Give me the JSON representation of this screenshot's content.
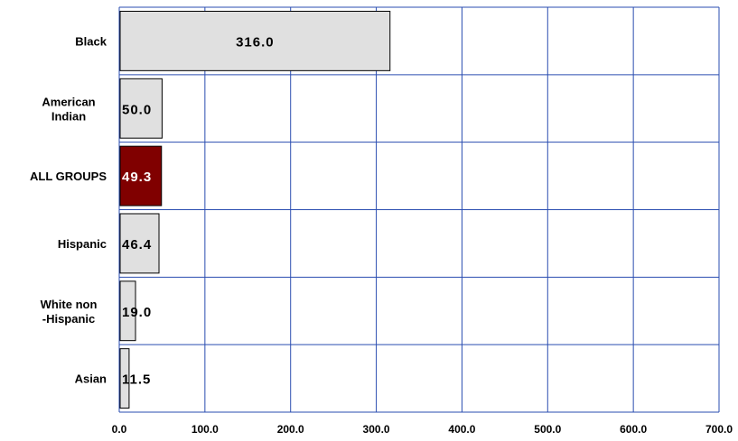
{
  "chart_data": {
    "type": "bar",
    "orientation": "horizontal",
    "categories": [
      "Black",
      "American Indian",
      "ALL GROUPS",
      "Hispanic",
      "White non -Hispanic",
      "Asian"
    ],
    "category_lines": [
      [
        "Black"
      ],
      [
        "American",
        "Indian"
      ],
      [
        "ALL GROUPS"
      ],
      [
        "Hispanic"
      ],
      [
        "White non",
        "-Hispanic"
      ],
      [
        "Asian"
      ]
    ],
    "values": [
      316.0,
      50.0,
      49.3,
      46.4,
      19.0,
      11.5
    ],
    "value_labels": [
      "316.0",
      "50.0",
      "49.3",
      "46.4",
      "19.0",
      "11.5"
    ],
    "xlim": [
      0,
      700
    ],
    "xticks": [
      "0.0",
      "100.0",
      "200.0",
      "300.0",
      "400.0",
      "500.0",
      "600.0",
      "700.0"
    ],
    "grid": true,
    "colors": {
      "bar": "#e0e0e0",
      "highlight_bar": "#800000",
      "grid": "#2a4db0",
      "bar_stroke": "#000000"
    },
    "highlight_category": "ALL GROUPS"
  }
}
